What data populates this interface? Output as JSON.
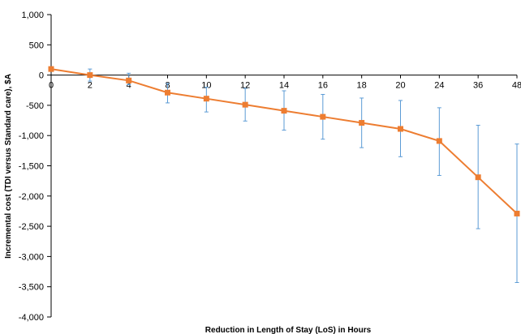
{
  "chart_data": {
    "type": "line",
    "title": "",
    "xlabel": "Reduction in Length of Stay (LoS) in Hours",
    "ylabel": "Incremental cost (TDI versus Standard care), $A",
    "categories": [
      "0",
      "2",
      "4",
      "8",
      "10",
      "12",
      "14",
      "16",
      "18",
      "20",
      "24",
      "36",
      "48"
    ],
    "yticks": [
      "1,000",
      "500",
      "0",
      "-500",
      "-1,000",
      "-1,500",
      "-2,000",
      "-2,500",
      "-3,000",
      "-3,500",
      "-4,000"
    ],
    "ylim": [
      -4000,
      1000
    ],
    "grid": false,
    "legend": "none",
    "line_color": "#ED7D31",
    "error_bar_color": "#5B9BD5",
    "series": [
      {
        "values": [
          100,
          0,
          -90,
          -290,
          -390,
          -490,
          -590,
          -690,
          -790,
          -890,
          -1090,
          -1690,
          -2290
        ],
        "error_upper": [
          100,
          100,
          30,
          -140,
          -200,
          -220,
          -260,
          -320,
          -380,
          -420,
          -540,
          -830,
          -1140
        ],
        "error_lower": [
          100,
          -100,
          -160,
          -460,
          -610,
          -760,
          -910,
          -1060,
          -1200,
          -1350,
          -1660,
          -2540,
          -3430
        ]
      }
    ]
  }
}
